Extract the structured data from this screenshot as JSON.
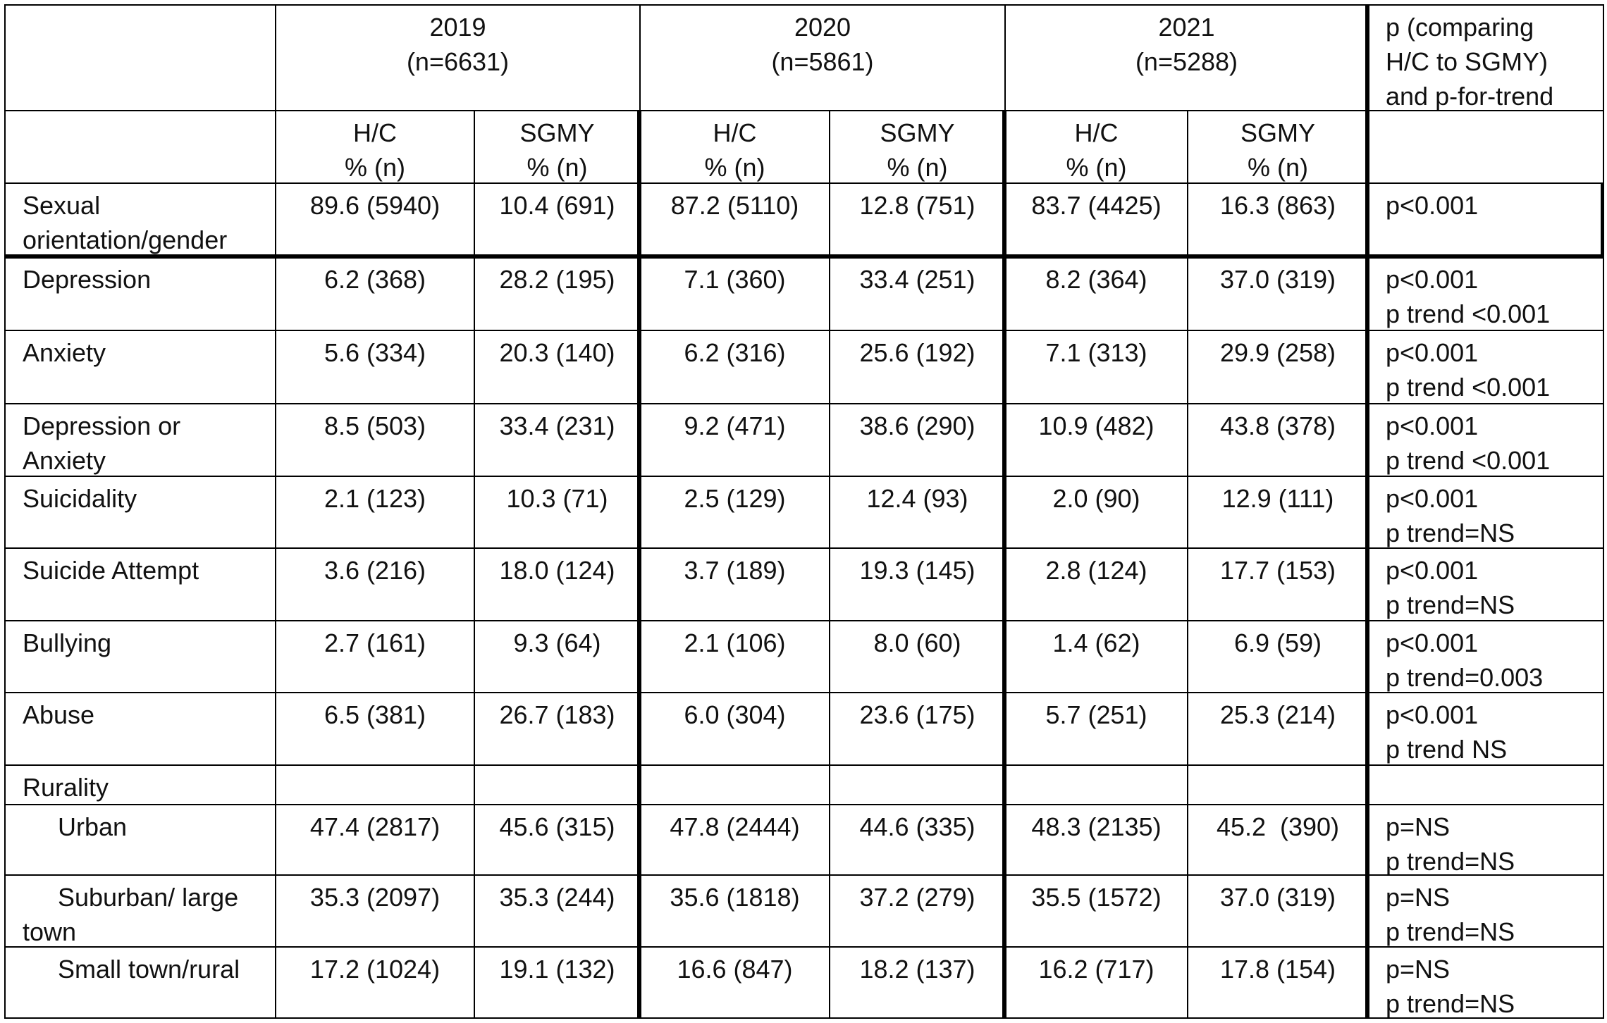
{
  "table": {
    "years": [
      {
        "year": "2019",
        "n": "(n=6631)"
      },
      {
        "year": "2020",
        "n": "(n=5861)"
      },
      {
        "year": "2021",
        "n": "(n=5288)"
      }
    ],
    "p_header": [
      "p (comparing",
      "H/C to SGMY)",
      "and p-for-trend"
    ],
    "subheaders": [
      {
        "group": "H/C",
        "unit": "% (n)"
      },
      {
        "group": "SGMY",
        "unit": "% (n)"
      },
      {
        "group": "H/C",
        "unit": "% (n)"
      },
      {
        "group": "SGMY",
        "unit": "% (n)"
      },
      {
        "group": "H/C",
        "unit": "% (n)"
      },
      {
        "group": "SGMY",
        "unit": "% (n)"
      }
    ],
    "rows": [
      {
        "label": "Sexual orientation/gender",
        "cells": [
          "89.6 (5940)",
          "10.4 (691)",
          "87.2 (5110)",
          "12.8 (751)",
          "83.7 (4425)",
          "16.3 (863)"
        ],
        "p": [
          "p<0.001"
        ]
      },
      {
        "label": "Depression",
        "cells": [
          "6.2 (368)",
          "28.2 (195)",
          "7.1 (360)",
          "33.4 (251)",
          "8.2 (364)",
          "37.0 (319)"
        ],
        "p": [
          "p<0.001",
          "p trend <0.001"
        ]
      },
      {
        "label": "Anxiety",
        "cells": [
          "5.6 (334)",
          "20.3 (140)",
          "6.2 (316)",
          "25.6 (192)",
          "7.1 (313)",
          "29.9 (258)"
        ],
        "p": [
          "p<0.001",
          "p trend <0.001"
        ]
      },
      {
        "label": "Depression or Anxiety",
        "cells": [
          "8.5 (503)",
          "33.4 (231)",
          "9.2 (471)",
          "38.6 (290)",
          "10.9 (482)",
          "43.8 (378)"
        ],
        "p": [
          "p<0.001",
          "p trend <0.001"
        ]
      },
      {
        "label": "Suicidality",
        "cells": [
          "2.1 (123)",
          "10.3 (71)",
          "2.5 (129)",
          "12.4 (93)",
          "2.0 (90)",
          "12.9 (111)"
        ],
        "p": [
          "p<0.001",
          "p trend=NS"
        ]
      },
      {
        "label": "Suicide Attempt",
        "cells": [
          "3.6 (216)",
          "18.0 (124)",
          "3.7 (189)",
          "19.3 (145)",
          "2.8 (124)",
          "17.7 (153)"
        ],
        "p": [
          "p<0.001",
          "p trend=NS"
        ]
      },
      {
        "label": "Bullying",
        "cells": [
          "2.7 (161)",
          "9.3 (64)",
          "2.1 (106)",
          "8.0 (60)",
          "1.4 (62)",
          "6.9 (59)"
        ],
        "p": [
          "p<0.001",
          "p trend=0.003"
        ]
      },
      {
        "label": "Abuse",
        "cells": [
          "6.5 (381)",
          "26.7 (183)",
          "6.0 (304)",
          "23.6 (175)",
          "5.7 (251)",
          "25.3 (214)"
        ],
        "p": [
          "p<0.001",
          "p trend NS"
        ]
      }
    ],
    "rurality": {
      "label": "Rurality",
      "rows": [
        {
          "label": "Urban",
          "cells": [
            "47.4 (2817)",
            "45.6 (315)",
            "47.8 (2444)",
            "44.6 (335)",
            "48.3 (2135)",
            "45.2  (390)"
          ],
          "p": [
            "p=NS",
            "p trend=NS"
          ]
        },
        {
          "label": "Suburban/ large town",
          "cells": [
            "35.3 (2097)",
            "35.3 (244)",
            "35.6 (1818)",
            "37.2 (279)",
            "35.5 (1572)",
            "37.0 (319)"
          ],
          "p": [
            "p=NS",
            "p trend=NS"
          ]
        },
        {
          "label": "Small town/rural",
          "cells": [
            "17.2 (1024)",
            "19.1 (132)",
            "16.6 (847)",
            "18.2 (137)",
            "16.2 (717)",
            "17.8 (154)"
          ],
          "p": [
            "p=NS",
            "p trend=NS"
          ]
        }
      ]
    }
  }
}
